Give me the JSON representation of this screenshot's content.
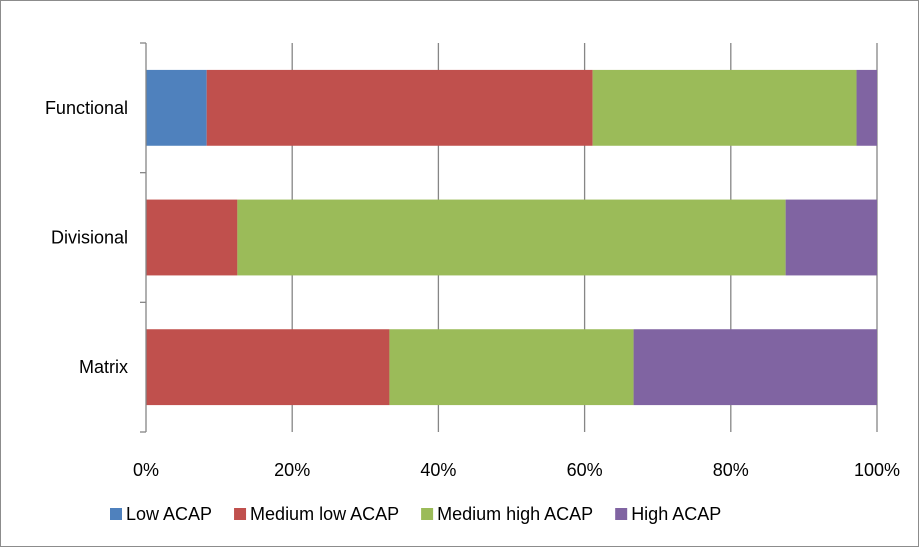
{
  "chart_data": {
    "type": "bar",
    "orientation": "horizontal",
    "stacked": "percent",
    "categories": [
      "Functional",
      "Divisional",
      "Matrix"
    ],
    "series": [
      {
        "name": "Low ACAP",
        "color": "#4F81BD",
        "values": [
          8.3,
          0,
          0
        ]
      },
      {
        "name": "Medium low ACAP",
        "color": "#C0504D",
        "values": [
          52.8,
          12.5,
          33.3
        ]
      },
      {
        "name": "Medium high ACAP",
        "color": "#9BBB59",
        "values": [
          36.1,
          75.0,
          33.4
        ]
      },
      {
        "name": "High ACAP",
        "color": "#8064A2",
        "values": [
          2.8,
          12.5,
          33.3
        ]
      }
    ],
    "xlim": [
      0,
      100
    ],
    "x_ticks": [
      "0%",
      "20%",
      "40%",
      "60%",
      "80%",
      "100%"
    ],
    "grid": "vertical major gridlines",
    "legend": "bottom"
  }
}
